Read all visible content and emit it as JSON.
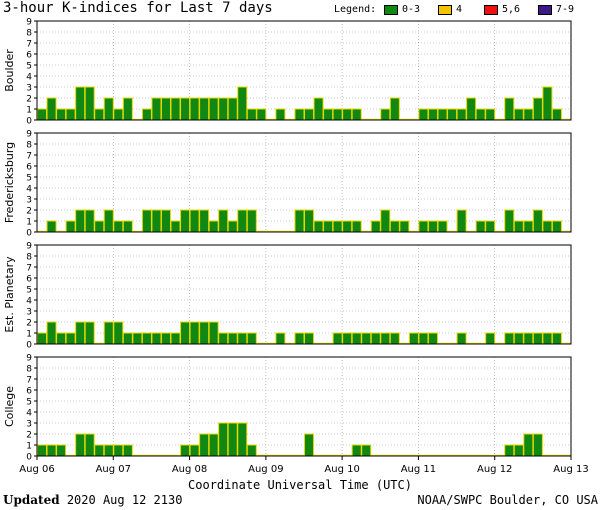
{
  "title": "3-hour K-indices for Last 7 days",
  "legend": {
    "label": "Legend:",
    "items": [
      {
        "label": "0-3",
        "color": "#118811"
      },
      {
        "label": "4",
        "color": "#f5c400"
      },
      {
        "label": "5,6",
        "color": "#ee1111"
      },
      {
        "label": "7-9",
        "color": "#3d1887"
      }
    ]
  },
  "xlabel": "Coordinate Universal Time (UTC)",
  "footer": {
    "updated_label": "Updated",
    "updated_value": "2020 Aug 12 2130",
    "credit": "NOAA/SWPC Boulder, CO USA"
  },
  "chart_data": {
    "type": "bar",
    "x_ticks": [
      "Aug 06",
      "Aug 07",
      "Aug 08",
      "Aug 09",
      "Aug 10",
      "Aug 11",
      "Aug 12",
      "Aug 13"
    ],
    "ylim": [
      0,
      9
    ],
    "y_ticks": [
      0,
      1,
      2,
      3,
      4,
      5,
      6,
      7,
      8,
      9
    ],
    "bar_color": "#118811",
    "bar_edge_color": "#e8d800",
    "grid": "dotted horizontal",
    "panels": [
      {
        "name": "Boulder",
        "values": [
          1,
          2,
          1,
          1,
          3,
          3,
          1,
          2,
          1,
          2,
          0,
          1,
          2,
          2,
          2,
          2,
          2,
          2,
          2,
          2,
          2,
          3,
          1,
          1,
          0,
          1,
          0,
          1,
          1,
          2,
          1,
          1,
          1,
          1,
          0,
          0,
          1,
          2,
          0,
          0,
          1,
          1,
          1,
          1,
          1,
          2,
          1,
          1,
          0,
          2,
          1,
          1,
          2,
          3,
          1,
          0
        ]
      },
      {
        "name": "Fredericksburg",
        "values": [
          0,
          1,
          0,
          1,
          2,
          2,
          1,
          2,
          1,
          1,
          0,
          2,
          2,
          2,
          1,
          2,
          2,
          2,
          1,
          2,
          1,
          2,
          2,
          0,
          0,
          0,
          0,
          2,
          2,
          1,
          1,
          1,
          1,
          1,
          0,
          1,
          2,
          1,
          1,
          0,
          1,
          1,
          1,
          0,
          2,
          0,
          1,
          1,
          0,
          2,
          1,
          1,
          2,
          1,
          1,
          0
        ]
      },
      {
        "name": "Est. Planetary",
        "values": [
          1,
          2,
          1,
          1,
          2,
          2,
          0,
          2,
          2,
          1,
          1,
          1,
          1,
          1,
          1,
          2,
          2,
          2,
          2,
          1,
          1,
          1,
          1,
          0,
          0,
          1,
          0,
          1,
          1,
          0,
          0,
          1,
          1,
          1,
          1,
          1,
          1,
          1,
          0,
          1,
          1,
          1,
          0,
          0,
          1,
          0,
          0,
          1,
          0,
          1,
          1,
          1,
          1,
          1,
          1,
          0
        ]
      },
      {
        "name": "College",
        "values": [
          1,
          1,
          1,
          0,
          2,
          2,
          1,
          1,
          1,
          1,
          0,
          0,
          0,
          0,
          0,
          1,
          1,
          2,
          2,
          3,
          3,
          3,
          1,
          0,
          0,
          0,
          0,
          0,
          2,
          0,
          0,
          0,
          0,
          1,
          1,
          0,
          0,
          0,
          0,
          0,
          0,
          0,
          0,
          0,
          0,
          0,
          0,
          0,
          0,
          1,
          1,
          2,
          2,
          0,
          0,
          0
        ]
      }
    ]
  }
}
